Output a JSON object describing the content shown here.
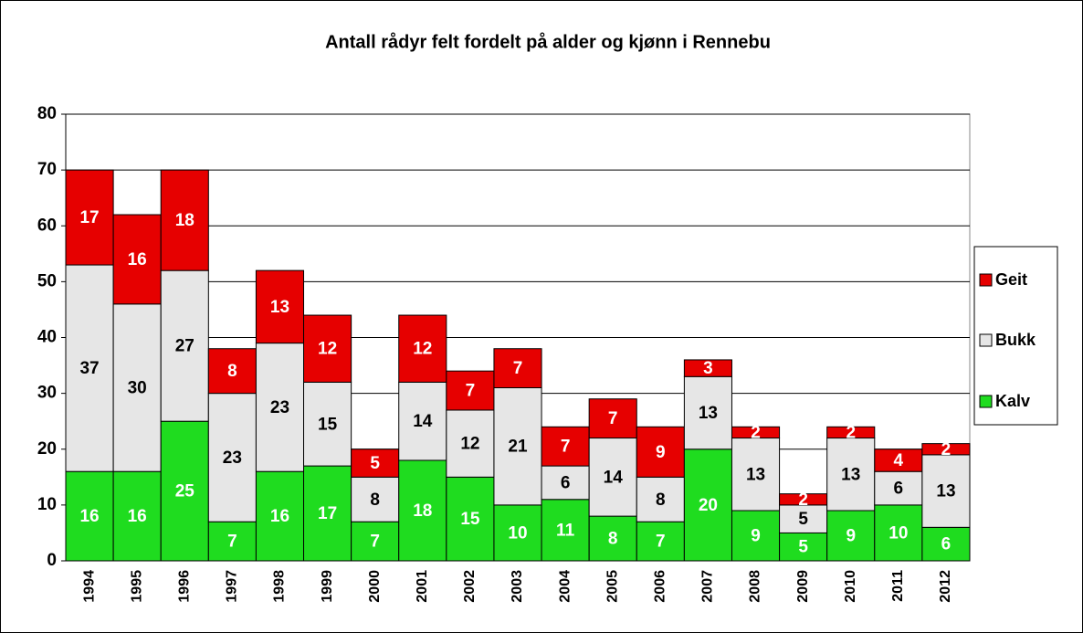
{
  "chart_data": {
    "type": "bar",
    "stacked": true,
    "title": "Antall rådyr felt fordelt på alder og kjønn i Rennebu",
    "categories": [
      "1994",
      "1995",
      "1996",
      "1997",
      "1998",
      "1999",
      "2000",
      "2001",
      "2002",
      "2003",
      "2004",
      "2005",
      "2006",
      "2007",
      "2008",
      "2009",
      "2010",
      "2011",
      "2012"
    ],
    "series": [
      {
        "name": "Kalv",
        "color": "#1fdc1f",
        "label_color": "#ffffff",
        "values": [
          16,
          16,
          25,
          7,
          16,
          17,
          7,
          18,
          15,
          10,
          11,
          8,
          7,
          20,
          9,
          5,
          9,
          10,
          6
        ]
      },
      {
        "name": "Bukk",
        "color": "#e6e6e6",
        "label_color": "#000000",
        "values": [
          37,
          30,
          27,
          23,
          23,
          15,
          8,
          14,
          12,
          21,
          6,
          14,
          8,
          13,
          13,
          5,
          13,
          6,
          13
        ]
      },
      {
        "name": "Geit",
        "color": "#e60000",
        "label_color": "#ffffff",
        "values": [
          17,
          16,
          18,
          8,
          13,
          12,
          5,
          12,
          7,
          7,
          7,
          7,
          9,
          3,
          2,
          2,
          2,
          4,
          2
        ]
      }
    ],
    "ylim": [
      0,
      80
    ],
    "yticks": [
      0,
      10,
      20,
      30,
      40,
      50,
      60,
      70,
      80
    ],
    "grid": true,
    "legend": "right"
  }
}
